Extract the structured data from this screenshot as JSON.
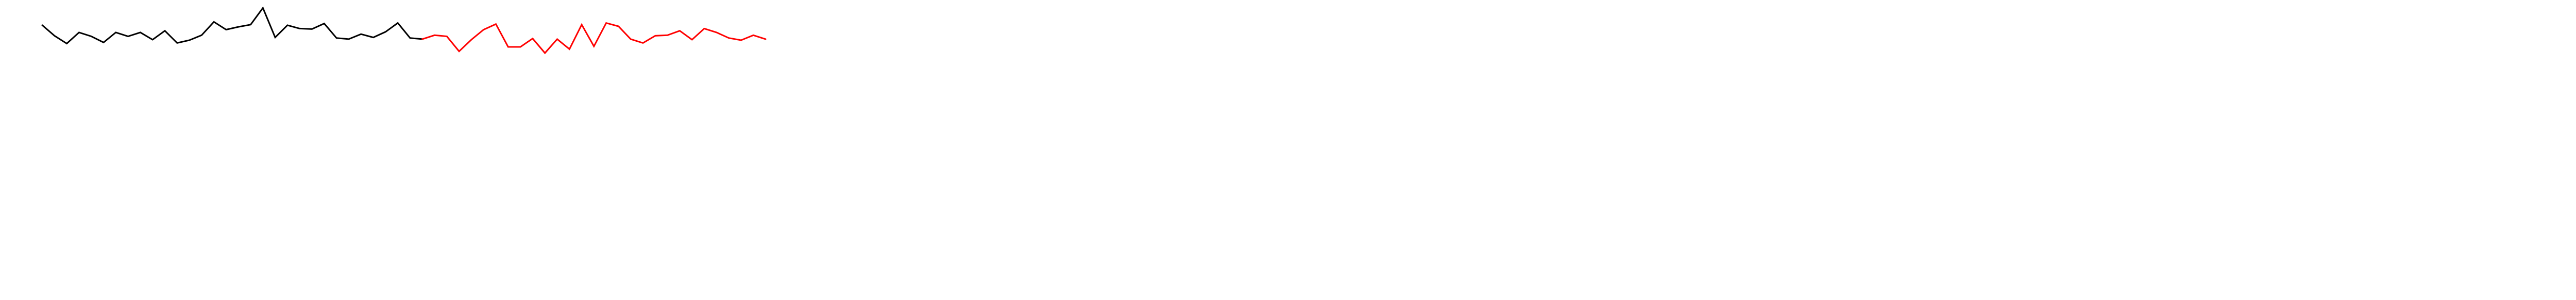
{
  "chart_data": {
    "type": "line",
    "title": "",
    "xlabel": "",
    "ylabel": "",
    "grid": false,
    "legend": "none",
    "x_range": [
      0,
      59
    ],
    "y_range": [
      0,
      100
    ],
    "series": [
      {
        "color": "#000000",
        "x": [
          0,
          1,
          2,
          3,
          4,
          5,
          6,
          7,
          8,
          9,
          10,
          11,
          12,
          13,
          14,
          15,
          16,
          17,
          18,
          19,
          20,
          21,
          22,
          23,
          24,
          25,
          26,
          27,
          28,
          29,
          30,
          31
        ],
        "values": [
          64,
          45,
          31,
          51,
          44,
          33,
          51,
          44,
          51,
          38,
          54,
          32,
          37,
          46,
          70,
          56,
          61,
          65,
          95,
          42,
          64,
          58,
          57,
          67,
          41,
          39,
          48,
          42,
          52,
          68,
          41,
          39
        ]
      },
      {
        "color": "#ff0000",
        "x": [
          31,
          32,
          33,
          34,
          35,
          36,
          37,
          38,
          39,
          40,
          41,
          42,
          43,
          44,
          45,
          46,
          47,
          48,
          49,
          50,
          51,
          52,
          53,
          54,
          55,
          56,
          57,
          58,
          59
        ],
        "values": [
          39,
          46,
          44,
          17,
          38,
          56,
          66,
          25,
          25,
          40,
          14,
          39,
          21,
          65,
          26,
          68,
          62,
          39,
          32,
          45,
          46,
          54,
          38,
          58,
          51,
          41,
          37,
          46,
          39
        ]
      }
    ]
  }
}
